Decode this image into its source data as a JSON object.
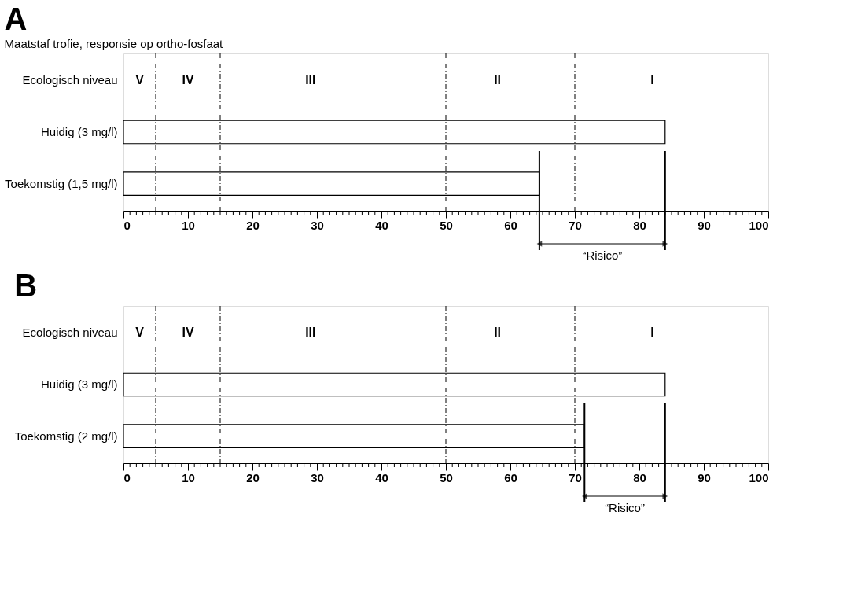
{
  "chart_data": [
    {
      "type": "bar",
      "orientation": "horizontal",
      "title": "A",
      "subtitle": "Maatstaf trofie, responsie op ortho-fosfaat",
      "categories": [
        "Ecologisch niveau",
        "Huidig (3 mg/l)",
        "Toekomstig (1,5 mg/l)"
      ],
      "values": [
        null,
        84,
        64.5
      ],
      "color": "#ffffff",
      "xlim": [
        0,
        100
      ],
      "xticks": [
        0,
        {
          "value": 1,
          "label": null
        },
        {
          "value": 2,
          "label": null
        },
        {
          "value": 3,
          "label": null
        },
        {
          "value": 4,
          "label": null
        },
        {
          "value": 5,
          "label": null
        },
        {
          "value": 6,
          "label": null
        },
        {
          "value": 7,
          "label": null
        },
        {
          "value": 8,
          "label": null
        },
        {
          "value": 9,
          "label": null
        },
        10,
        {
          "value": 11,
          "label": null
        },
        {
          "value": 12,
          "label": null
        },
        {
          "value": 13,
          "label": null
        },
        {
          "value": 14,
          "label": null
        },
        {
          "value": 15,
          "label": null
        },
        {
          "value": 16,
          "label": null
        },
        {
          "value": 17,
          "label": null
        },
        {
          "value": 18,
          "label": null
        },
        {
          "value": 19,
          "label": null
        },
        20,
        {
          "value": 21,
          "label": null
        },
        {
          "value": 22,
          "label": null
        },
        {
          "value": 23,
          "label": null
        },
        {
          "value": 24,
          "label": null
        },
        {
          "value": 25,
          "label": null
        },
        {
          "value": 26,
          "label": null
        },
        {
          "value": 27,
          "label": null
        },
        {
          "value": 28,
          "label": null
        },
        {
          "value": 29,
          "label": null
        },
        30,
        {
          "value": 31,
          "label": null
        },
        {
          "value": 32,
          "label": null
        },
        {
          "value": 33,
          "label": null
        },
        {
          "value": 34,
          "label": null
        },
        {
          "value": 35,
          "label": null
        },
        {
          "value": 36,
          "label": null
        },
        {
          "value": 37,
          "label": null
        },
        {
          "value": 38,
          "label": null
        },
        {
          "value": 39,
          "label": null
        },
        40,
        {
          "value": 41,
          "label": null
        },
        {
          "value": 42,
          "label": null
        },
        {
          "value": 43,
          "label": null
        },
        {
          "value": 44,
          "label": null
        },
        {
          "value": 45,
          "label": null
        },
        {
          "value": 46,
          "label": null
        },
        {
          "value": 47,
          "label": null
        },
        {
          "value": 48,
          "label": null
        },
        {
          "value": 49,
          "label": null
        },
        50,
        {
          "value": 51,
          "label": null
        },
        {
          "value": 52,
          "label": null
        },
        {
          "value": 53,
          "label": null
        },
        {
          "value": 54,
          "label": null
        },
        {
          "value": 55,
          "label": null
        },
        {
          "value": 56,
          "label": null
        },
        {
          "value": 57,
          "label": null
        },
        {
          "value": 58,
          "label": null
        },
        {
          "value": 59,
          "label": null
        },
        60,
        {
          "value": 61,
          "label": null
        },
        {
          "value": 62,
          "label": null
        },
        {
          "value": 63,
          "label": null
        },
        {
          "value": 64,
          "label": null
        },
        {
          "value": 65,
          "label": null
        },
        {
          "value": 66,
          "label": null
        },
        {
          "value": 67,
          "label": null
        },
        {
          "value": 68,
          "label": null
        },
        {
          "value": 69,
          "label": null
        },
        70,
        {
          "value": 71,
          "label": null
        },
        {
          "value": 72,
          "label": null
        },
        {
          "value": 73,
          "label": null
        },
        {
          "value": 74,
          "label": null
        },
        {
          "value": 75,
          "label": null
        },
        {
          "value": 76,
          "label": null
        },
        {
          "value": 77,
          "label": null
        },
        {
          "value": 78,
          "label": null
        },
        {
          "value": 79,
          "label": null
        },
        80,
        {
          "value": 81,
          "label": null
        },
        {
          "value": 82,
          "label": null
        },
        {
          "value": 83,
          "label": null
        },
        {
          "value": 84,
          "label": null
        },
        {
          "value": 85,
          "label": null
        },
        {
          "value": 86,
          "label": null
        },
        {
          "value": 87,
          "label": null
        },
        {
          "value": 88,
          "label": null
        },
        {
          "value": 89,
          "label": null
        },
        90,
        {
          "value": 91,
          "label": null
        },
        {
          "value": 92,
          "label": null
        },
        {
          "value": 93,
          "label": null
        },
        {
          "value": 94,
          "label": null
        },
        {
          "value": 95,
          "label": null
        },
        {
          "value": 96,
          "label": null
        },
        {
          "value": 97,
          "label": null
        },
        {
          "value": 98,
          "label": null
        },
        {
          "value": 99,
          "label": null
        },
        100
      ],
      "grid": false,
      "ref_lines": [
        {
          "axis": "x",
          "value": 5,
          "line_style": "dashed"
        },
        {
          "axis": "x",
          "value": 15,
          "line_style": "dashed"
        },
        {
          "axis": "x",
          "value": 50,
          "line_style": "dashed"
        },
        {
          "axis": "x",
          "value": 70,
          "line_style": "dashed"
        },
        {
          "axis": "x",
          "value": 64.5,
          "line_style": "solid"
        },
        {
          "axis": "x",
          "value": 84,
          "line_style": "solid"
        }
      ],
      "annotations": [
        "V",
        "IV",
        "III",
        "II",
        "I",
        "“Risico”"
      ]
    },
    {
      "type": "bar",
      "orientation": "horizontal",
      "title": "B",
      "categories": [
        "Ecologisch niveau",
        "Huidig (3 mg/l)",
        "Toekomstig (2 mg/l)"
      ],
      "values": [
        null,
        84,
        71.5
      ],
      "color": "#ffffff",
      "xlim": [
        0,
        100
      ],
      "xticks": [
        0,
        {
          "value": 1,
          "label": null
        },
        {
          "value": 2,
          "label": null
        },
        {
          "value": 3,
          "label": null
        },
        {
          "value": 4,
          "label": null
        },
        {
          "value": 5,
          "label": null
        },
        {
          "value": 6,
          "label": null
        },
        {
          "value": 7,
          "label": null
        },
        {
          "value": 8,
          "label": null
        },
        {
          "value": 9,
          "label": null
        },
        10,
        {
          "value": 11,
          "label": null
        },
        {
          "value": 12,
          "label": null
        },
        {
          "value": 13,
          "label": null
        },
        {
          "value": 14,
          "label": null
        },
        {
          "value": 15,
          "label": null
        },
        {
          "value": 16,
          "label": null
        },
        {
          "value": 17,
          "label": null
        },
        {
          "value": 18,
          "label": null
        },
        {
          "value": 19,
          "label": null
        },
        20,
        {
          "value": 21,
          "label": null
        },
        {
          "value": 22,
          "label": null
        },
        {
          "value": 23,
          "label": null
        },
        {
          "value": 24,
          "label": null
        },
        {
          "value": 25,
          "label": null
        },
        {
          "value": 26,
          "label": null
        },
        {
          "value": 27,
          "label": null
        },
        {
          "value": 28,
          "label": null
        },
        {
          "value": 29,
          "label": null
        },
        30,
        {
          "value": 31,
          "label": null
        },
        {
          "value": 32,
          "label": null
        },
        {
          "value": 33,
          "label": null
        },
        {
          "value": 34,
          "label": null
        },
        {
          "value": 35,
          "label": null
        },
        {
          "value": 36,
          "label": null
        },
        {
          "value": 37,
          "label": null
        },
        {
          "value": 38,
          "label": null
        },
        {
          "value": 39,
          "label": null
        },
        40,
        {
          "value": 41,
          "label": null
        },
        {
          "value": 42,
          "label": null
        },
        {
          "value": 43,
          "label": null
        },
        {
          "value": 44,
          "label": null
        },
        {
          "value": 45,
          "label": null
        },
        {
          "value": 46,
          "label": null
        },
        {
          "value": 47,
          "label": null
        },
        {
          "value": 48,
          "label": null
        },
        {
          "value": 49,
          "label": null
        },
        50,
        {
          "value": 51,
          "label": null
        },
        {
          "value": 52,
          "label": null
        },
        {
          "value": 53,
          "label": null
        },
        {
          "value": 54,
          "label": null
        },
        {
          "value": 55,
          "label": null
        },
        {
          "value": 56,
          "label": null
        },
        {
          "value": 57,
          "label": null
        },
        {
          "value": 58,
          "label": null
        },
        {
          "value": 59,
          "label": null
        },
        60,
        {
          "value": 61,
          "label": null
        },
        {
          "value": 62,
          "label": null
        },
        {
          "value": 63,
          "label": null
        },
        {
          "value": 64,
          "label": null
        },
        {
          "value": 65,
          "label": null
        },
        {
          "value": 66,
          "label": null
        },
        {
          "value": 67,
          "label": null
        },
        {
          "value": 68,
          "label": null
        },
        {
          "value": 69,
          "label": null
        },
        70,
        {
          "value": 71,
          "label": null
        },
        {
          "value": 72,
          "label": null
        },
        {
          "value": 73,
          "label": null
        },
        {
          "value": 74,
          "label": null
        },
        {
          "value": 75,
          "label": null
        },
        {
          "value": 76,
          "label": null
        },
        {
          "value": 77,
          "label": null
        },
        {
          "value": 78,
          "label": null
        },
        {
          "value": 79,
          "label": null
        },
        80,
        {
          "value": 81,
          "label": null
        },
        {
          "value": 82,
          "label": null
        },
        {
          "value": 83,
          "label": null
        },
        {
          "value": 84,
          "label": null
        },
        {
          "value": 85,
          "label": null
        },
        {
          "value": 86,
          "label": null
        },
        {
          "value": 87,
          "label": null
        },
        {
          "value": 88,
          "label": null
        },
        {
          "value": 89,
          "label": null
        },
        90,
        {
          "value": 91,
          "label": null
        },
        {
          "value": 92,
          "label": null
        },
        {
          "value": 93,
          "label": null
        },
        {
          "value": 94,
          "label": null
        },
        {
          "value": 95,
          "label": null
        },
        {
          "value": 96,
          "label": null
        },
        {
          "value": 97,
          "label": null
        },
        {
          "value": 98,
          "label": null
        },
        {
          "value": 99,
          "label": null
        },
        100
      ],
      "grid": false,
      "ref_lines": [
        {
          "axis": "x",
          "value": 5,
          "line_style": "dashed"
        },
        {
          "axis": "x",
          "value": 15,
          "line_style": "dashed"
        },
        {
          "axis": "x",
          "value": 50,
          "line_style": "dashed"
        },
        {
          "axis": "x",
          "value": 70,
          "line_style": "dashed"
        },
        {
          "axis": "x",
          "value": 71.5,
          "line_style": "solid"
        },
        {
          "axis": "x",
          "value": 84,
          "line_style": "solid"
        }
      ],
      "annotations": [
        "V",
        "IV",
        "III",
        "II",
        "I",
        "“Risico”"
      ]
    }
  ]
}
